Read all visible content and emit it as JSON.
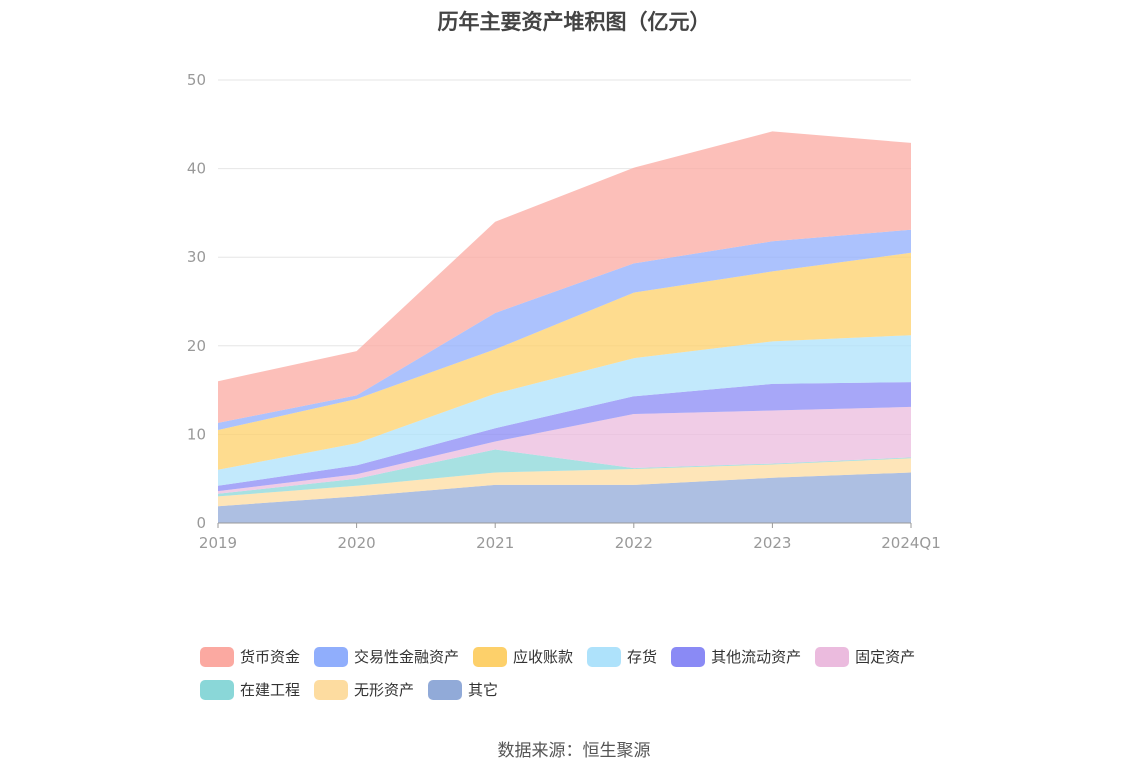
{
  "chart_data": {
    "type": "area",
    "stacked": true,
    "title": "历年主要资产堆积图（亿元）",
    "source": "数据来源：恒生聚源",
    "categories": [
      "2019",
      "2020",
      "2021",
      "2022",
      "2023",
      "2024Q1"
    ],
    "ylim": [
      0,
      50
    ],
    "yticks": [
      0,
      10,
      20,
      30,
      40,
      50
    ],
    "grid": true,
    "legend_position": "bottom",
    "series": [
      {
        "name": "其它",
        "color": "#91aad8",
        "values": [
          1.9,
          3.0,
          4.3,
          4.3,
          5.1,
          5.7
        ]
      },
      {
        "name": "无形资产",
        "color": "#fddca0",
        "values": [
          1.1,
          1.2,
          1.4,
          1.8,
          1.5,
          1.6
        ]
      },
      {
        "name": "在建工程",
        "color": "#8ad7d8",
        "values": [
          0.3,
          0.8,
          2.6,
          0.1,
          0.1,
          0.1
        ]
      },
      {
        "name": "固定资产",
        "color": "#ebbbde",
        "values": [
          0.3,
          0.5,
          0.9,
          6.1,
          6.0,
          5.7
        ]
      },
      {
        "name": "其他流动资产",
        "color": "#8a8af5",
        "values": [
          0.6,
          1.0,
          1.5,
          2.0,
          3.0,
          2.8
        ]
      },
      {
        "name": "存货",
        "color": "#aee2fb",
        "values": [
          1.8,
          2.5,
          3.9,
          4.3,
          4.8,
          5.3
        ]
      },
      {
        "name": "应收账款",
        "color": "#fdd06a",
        "values": [
          4.5,
          5.0,
          5.0,
          7.4,
          7.9,
          9.3
        ]
      },
      {
        "name": "交易性金融资产",
        "color": "#90aefc",
        "values": [
          0.8,
          0.4,
          4.1,
          3.3,
          3.4,
          2.6
        ]
      },
      {
        "name": "货币资金",
        "color": "#fba9a1",
        "values": [
          4.7,
          5.0,
          10.3,
          10.8,
          12.4,
          9.8
        ]
      }
    ]
  },
  "legend_order": [
    "货币资金",
    "交易性金融资产",
    "应收账款",
    "存货",
    "其他流动资产",
    "固定资产",
    "在建工程",
    "无形资产",
    "其它"
  ]
}
